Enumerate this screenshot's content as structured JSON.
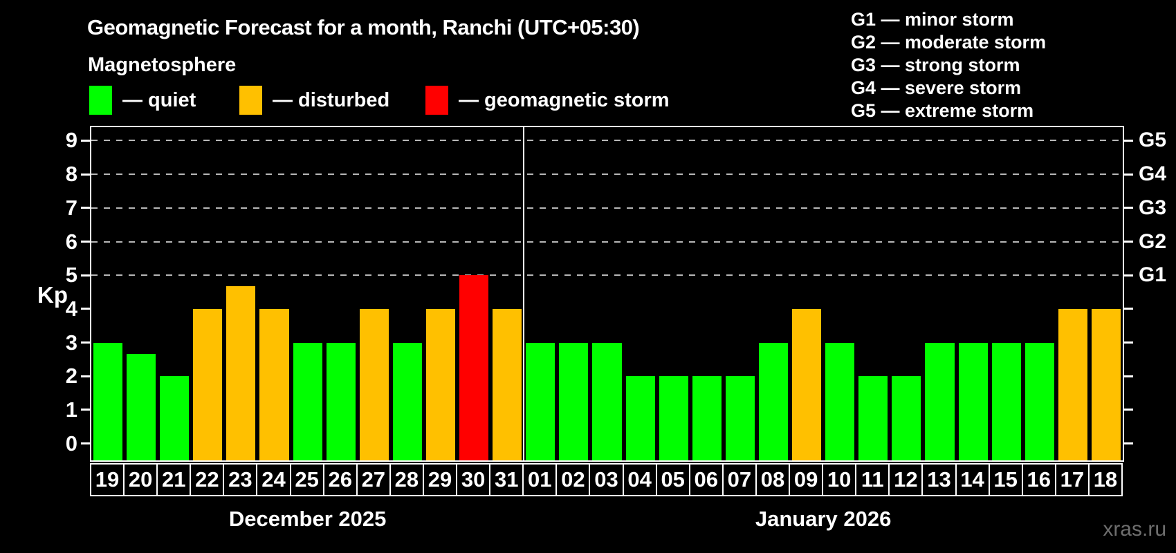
{
  "header": {
    "title": "Geomagnetic Forecast for a month, Ranchi (UTC+05:30)",
    "subtitle": "Magnetosphere"
  },
  "magnetosphere_legend": [
    {
      "name": "quiet",
      "label": "— quiet",
      "color": "#00ff00"
    },
    {
      "name": "disturbed",
      "label": "— disturbed",
      "color": "#ffc000"
    },
    {
      "name": "storm",
      "label": "— geomagnetic storm",
      "color": "#ff0000"
    }
  ],
  "g_scale_legend": [
    "G1 — minor storm",
    "G2 — moderate storm",
    "G3 — strong storm",
    "G4 — severe storm",
    "G5 — extreme storm"
  ],
  "watermark": "xras.ru",
  "chart_data": {
    "type": "bar",
    "title": "Geomagnetic Forecast for a month, Ranchi (UTC+05:30)",
    "xlabel": "",
    "ylabel": "Kp",
    "ylim": [
      0,
      9
    ],
    "yticks": [
      0,
      1,
      2,
      3,
      4,
      5,
      6,
      7,
      8,
      9
    ],
    "gridlines_at": [
      5,
      6,
      7,
      8,
      9
    ],
    "grid": "horizontal dashed lines only at storm levels Kp 5-9",
    "legend_position": "top",
    "right_axis": [
      {
        "label": "G1",
        "kp": 5
      },
      {
        "label": "G2",
        "kp": 6
      },
      {
        "label": "G3",
        "kp": 7
      },
      {
        "label": "G4",
        "kp": 8
      },
      {
        "label": "G5",
        "kp": 9
      }
    ],
    "months": [
      {
        "label": "December 2025",
        "days": 13
      },
      {
        "label": "January 2026",
        "days": 18
      }
    ],
    "categories": [
      "19",
      "20",
      "21",
      "22",
      "23",
      "24",
      "25",
      "26",
      "27",
      "28",
      "29",
      "30",
      "31",
      "01",
      "02",
      "03",
      "04",
      "05",
      "06",
      "07",
      "08",
      "09",
      "10",
      "11",
      "12",
      "13",
      "14",
      "15",
      "16",
      "17",
      "18"
    ],
    "values": [
      3,
      2.67,
      2,
      4,
      4.67,
      4,
      3,
      3,
      4,
      3,
      4,
      5,
      4,
      3,
      3,
      3,
      2,
      2,
      2,
      2,
      3,
      4,
      3,
      2,
      2,
      3,
      3,
      3,
      3,
      4,
      4
    ],
    "statuses": [
      "quiet",
      "quiet",
      "quiet",
      "disturbed",
      "disturbed",
      "disturbed",
      "quiet",
      "quiet",
      "disturbed",
      "quiet",
      "disturbed",
      "storm",
      "disturbed",
      "quiet",
      "quiet",
      "quiet",
      "quiet",
      "quiet",
      "quiet",
      "quiet",
      "quiet",
      "disturbed",
      "quiet",
      "quiet",
      "quiet",
      "quiet",
      "quiet",
      "quiet",
      "quiet",
      "disturbed",
      "disturbed"
    ],
    "colors": {
      "quiet": "#00ff00",
      "disturbed": "#ffc000",
      "storm": "#ff0000"
    }
  }
}
